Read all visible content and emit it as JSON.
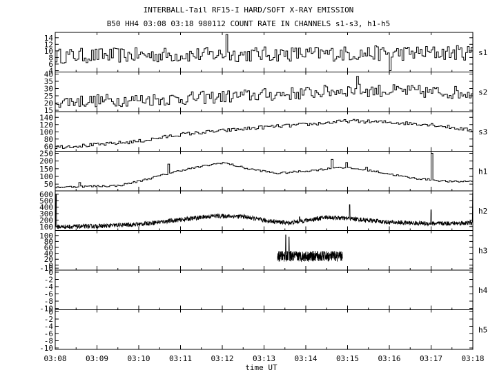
{
  "title": "INTERBALL-Tail RF15-I HARD/SOFT X-RAY EMISSION",
  "subtitle": "B50 HH4 03:08 03:18 980112  COUNT RATE IN CHANNELS s1-s3, h1-h5",
  "chart_data": {
    "type": "line",
    "xlabel": "time UT",
    "x_range_minutes": [
      0,
      10
    ],
    "x_ticks": [
      "03:08",
      "03:09",
      "03:10",
      "03:11",
      "03:12",
      "03:13",
      "03:14",
      "03:15",
      "03:16",
      "03:17",
      "03:18"
    ],
    "panels": [
      {
        "name": "s1",
        "ylim": [
          4,
          15
        ],
        "yticks": [
          4,
          6,
          8,
          10,
          12,
          14
        ],
        "style": "step",
        "features": {
          "base": 8.5,
          "noise": 2.3,
          "trend": [
            [
              0,
              0
            ],
            [
              10,
              1
            ]
          ],
          "spikes": [
            [
              4.1,
              15
            ],
            [
              8.0,
              4.0
            ]
          ]
        }
      },
      {
        "name": "s2",
        "ylim": [
          15,
          40
        ],
        "yticks": [
          15,
          20,
          25,
          30,
          35,
          40
        ],
        "style": "step",
        "features": {
          "base": 21,
          "noise": 4.5,
          "trend": [
            [
              0,
              0
            ],
            [
              3,
              2
            ],
            [
              6,
              6
            ],
            [
              7,
              8
            ],
            [
              10,
              6
            ]
          ],
          "spikes": [
            [
              7.2,
              38.5
            ]
          ]
        }
      },
      {
        "name": "s3",
        "ylim": [
          50,
          150
        ],
        "yticks": [
          60,
          80,
          100,
          120,
          140
        ],
        "style": "step",
        "features": {
          "base": 58,
          "noise": 5,
          "trend": [
            [
              0,
              0
            ],
            [
              1,
              6
            ],
            [
              2,
              16
            ],
            [
              3,
              35
            ],
            [
              4,
              45
            ],
            [
              5,
              55
            ],
            [
              6,
              62
            ],
            [
              7,
              72
            ],
            [
              8,
              68
            ],
            [
              9,
              62
            ],
            [
              10,
              45
            ]
          ],
          "spikes": []
        }
      },
      {
        "name": "h1",
        "ylim": [
          15,
          250
        ],
        "yticks": [
          50,
          100,
          150,
          200,
          250
        ],
        "style": "step",
        "features": {
          "base": 30,
          "noise": 6,
          "trend": [
            [
              0,
              0
            ],
            [
              1.5,
              10
            ],
            [
              2,
              40
            ],
            [
              3,
              110
            ],
            [
              4,
              160
            ],
            [
              4.6,
              120
            ],
            [
              5.3,
              90
            ],
            [
              6.2,
              110
            ],
            [
              6.8,
              130
            ],
            [
              7.5,
              110
            ],
            [
              8.5,
              60
            ],
            [
              9.5,
              35
            ],
            [
              10,
              40
            ]
          ],
          "spikes": [
            [
              0.55,
              60
            ],
            [
              2.7,
              180
            ],
            [
              6.6,
              210
            ],
            [
              6.95,
              190
            ],
            [
              7.45,
              160
            ],
            [
              9.0,
              260
            ],
            [
              10.0,
              140
            ]
          ]
        }
      },
      {
        "name": "h2",
        "ylim": [
          60,
          620
        ],
        "yticks": [
          100,
          200,
          300,
          400,
          500,
          600
        ],
        "style": "noise",
        "features": {
          "base": 95,
          "noise": 35,
          "trend": [
            [
              0,
              0
            ],
            [
              1,
              10
            ],
            [
              2,
              40
            ],
            [
              3,
              110
            ],
            [
              3.8,
              170
            ],
            [
              4.5,
              160
            ],
            [
              5,
              100
            ],
            [
              5.6,
              60
            ],
            [
              6.5,
              150
            ],
            [
              7.2,
              120
            ],
            [
              8,
              70
            ],
            [
              9,
              50
            ],
            [
              10,
              60
            ]
          ],
          "spikes": [
            [
              0.02,
              600
            ],
            [
              5.85,
              250
            ],
            [
              7.05,
              440
            ],
            [
              9.0,
              360
            ],
            [
              10.0,
              620
            ]
          ]
        }
      },
      {
        "name": "h3",
        "ylim": [
          -12,
          110
        ],
        "yticks": [
          -10,
          0,
          20,
          40,
          60,
          80,
          100
        ],
        "style": "burst",
        "features": {
          "start": 5.32,
          "end": 6.88,
          "base": 30,
          "noise": 18,
          "spikes": [
            [
              5.52,
              102
            ],
            [
              5.6,
              95
            ]
          ]
        }
      },
      {
        "name": "h4",
        "ylim": [
          -10,
          0
        ],
        "yticks": [
          -10,
          -8,
          -6,
          -4,
          -2,
          0
        ],
        "style": "empty"
      },
      {
        "name": "h5",
        "ylim": [
          -10,
          0
        ],
        "yticks": [
          -10,
          -8,
          -6,
          -4,
          -2,
          0
        ],
        "style": "empty"
      }
    ]
  }
}
